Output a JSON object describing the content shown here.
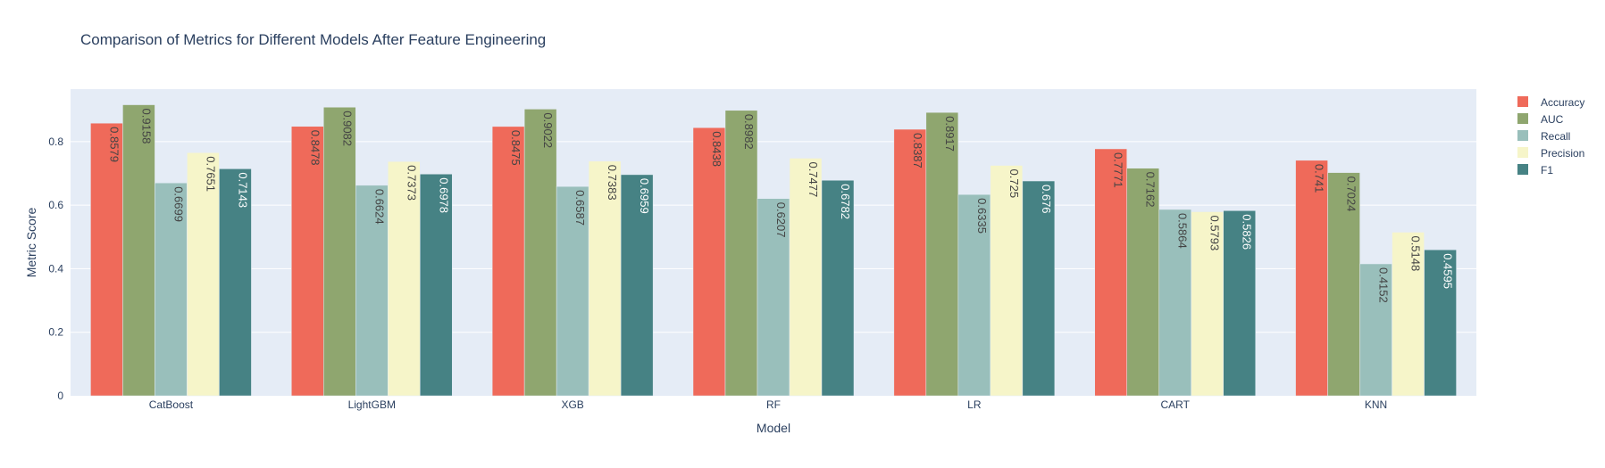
{
  "chart_data": {
    "type": "bar",
    "title": "Comparison of Metrics for Different Models After Feature Engineering",
    "xlabel": "Model",
    "ylabel": "Metric Score",
    "ylim": [
      0,
      0.965
    ],
    "yticks": [
      0,
      0.2,
      0.4,
      0.6,
      0.8
    ],
    "grid": true,
    "legend_position": "top-right",
    "categories": [
      "CatBoost",
      "LightGBM",
      "XGB",
      "RF",
      "LR",
      "CART",
      "KNN"
    ],
    "series": [
      {
        "name": "Accuracy",
        "color": "#EF6A5A",
        "label_color": "#444444",
        "values": [
          0.8579,
          0.8478,
          0.8475,
          0.8438,
          0.8387,
          0.7771,
          0.741
        ]
      },
      {
        "name": "AUC",
        "color": "#8FA66F",
        "label_color": "#444444",
        "values": [
          0.9158,
          0.9082,
          0.9022,
          0.8982,
          0.8917,
          0.7162,
          0.7024
        ]
      },
      {
        "name": "Recall",
        "color": "#99BFBB",
        "label_color": "#444444",
        "values": [
          0.6699,
          0.6624,
          0.6587,
          0.6207,
          0.6335,
          0.5864,
          0.4152
        ]
      },
      {
        "name": "Precision",
        "color": "#F6F5C9",
        "label_color": "#444444",
        "values": [
          0.7651,
          0.7373,
          0.7383,
          0.7477,
          0.725,
          0.5793,
          0.5148
        ]
      },
      {
        "name": "F1",
        "color": "#468284",
        "label_color": "#ffffff",
        "values": [
          0.7143,
          0.6978,
          0.6959,
          0.6782,
          0.676,
          0.5826,
          0.4595
        ]
      }
    ]
  }
}
